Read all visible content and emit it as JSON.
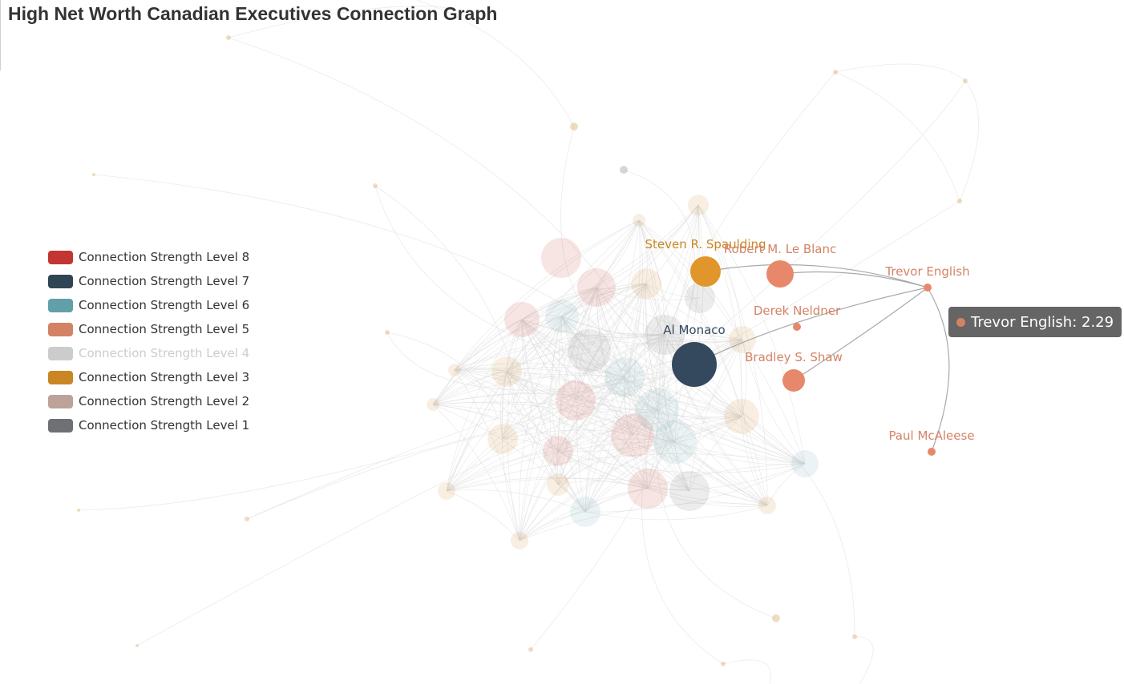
{
  "title": "High Net Worth Canadian Executives Connection Graph",
  "legend": [
    {
      "label": "Connection Strength Level 8",
      "color": "#c23531",
      "active": true
    },
    {
      "label": "Connection Strength Level 7",
      "color": "#2f4554",
      "active": true
    },
    {
      "label": "Connection Strength Level 6",
      "color": "#61a0a8",
      "active": true
    },
    {
      "label": "Connection Strength Level 5",
      "color": "#d48265",
      "active": true
    },
    {
      "label": "Connection Strength Level 4",
      "color": "#91c7ae",
      "active": false
    },
    {
      "label": "Connection Strength Level 3",
      "color": "#ca8622",
      "active": true
    },
    {
      "label": "Connection Strength Level 2",
      "color": "#bda29a",
      "active": true
    },
    {
      "label": "Connection Strength Level 1",
      "color": "#6e7074",
      "active": true
    }
  ],
  "highlighted_nodes": [
    {
      "name": "Al Monaco",
      "level": 7,
      "color": "#34495e",
      "label_color": "#34495e"
    },
    {
      "name": "Steven R. Spaulding",
      "level": 3,
      "color": "#e0962a",
      "label_color": "#ca8622"
    },
    {
      "name": "Robert M. Le Blanc",
      "level": 5,
      "color": "#e8886a",
      "label_color": "#d48265"
    },
    {
      "name": "Trevor English",
      "level": 5,
      "color": "#e8886a",
      "label_color": "#d48265"
    },
    {
      "name": "Derek Neldner",
      "level": 5,
      "color": "#e8886a",
      "label_color": "#d48265"
    },
    {
      "name": "Bradley S. Shaw",
      "level": 5,
      "color": "#e8886a",
      "label_color": "#d48265"
    },
    {
      "name": "Paul McAleese",
      "level": 5,
      "color": "#e8886a",
      "label_color": "#d48265"
    }
  ],
  "tooltip": {
    "text": "Trevor English: 2.29",
    "dot_color": "#d48265"
  }
}
